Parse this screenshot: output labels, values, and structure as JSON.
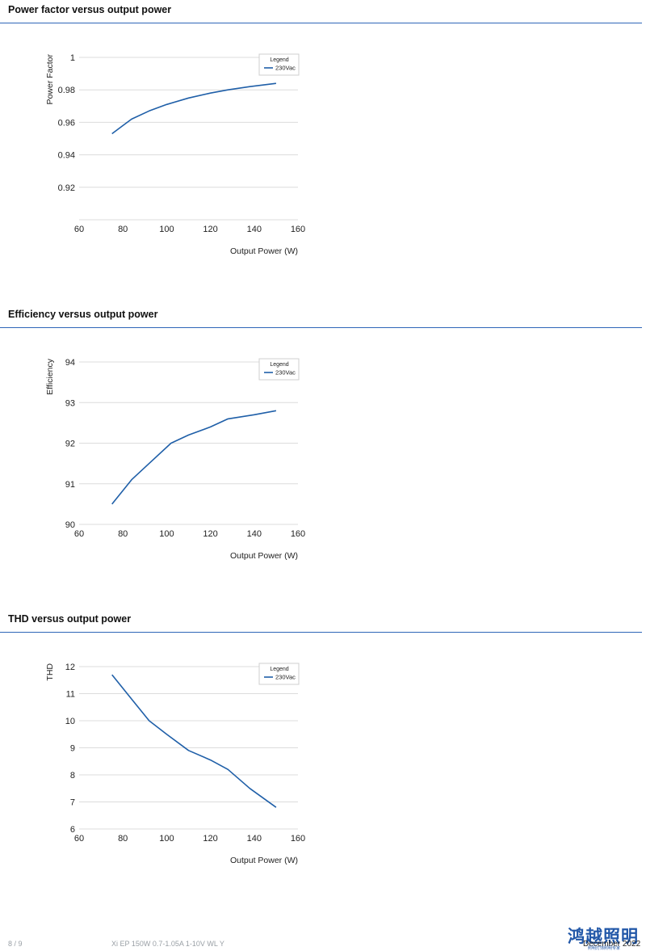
{
  "chart_data": [
    {
      "type": "line",
      "title": "Power factor versus output power",
      "xlabel": "Output Power (W)",
      "ylabel": "Power Factor",
      "xlim": [
        60,
        160
      ],
      "ylim": [
        0.9,
        1.0
      ],
      "xticks": [
        60,
        80,
        100,
        120,
        140,
        160
      ],
      "yticks": [
        0.92,
        0.94,
        0.96,
        0.98,
        1
      ],
      "ytick_labels": [
        "0.92",
        "0.94",
        "0.96",
        "0.98",
        "1"
      ],
      "grid": true,
      "legend": {
        "title": "Legend",
        "placement": "top-right"
      },
      "series": [
        {
          "name": "230Vac",
          "color": "#1f5fa8",
          "x": [
            75,
            80,
            84,
            92,
            100,
            110,
            120,
            128,
            138,
            150
          ],
          "y": [
            0.953,
            0.958,
            0.962,
            0.967,
            0.971,
            0.975,
            0.978,
            0.98,
            0.982,
            0.984
          ]
        }
      ]
    },
    {
      "type": "line",
      "title": "Efficiency versus output power",
      "xlabel": "Output Power (W)",
      "ylabel": "Efficiency",
      "xlim": [
        60,
        160
      ],
      "ylim": [
        90,
        94
      ],
      "xticks": [
        60,
        80,
        100,
        120,
        140,
        160
      ],
      "yticks": [
        90,
        91,
        92,
        93,
        94
      ],
      "ytick_labels": [
        "90",
        "91",
        "92",
        "93",
        "94"
      ],
      "grid": true,
      "legend": {
        "title": "Legend",
        "placement": "top-right"
      },
      "series": [
        {
          "name": "230Vac",
          "color": "#1f5fa8",
          "x": [
            75,
            84,
            92,
            102,
            110,
            120,
            128,
            140,
            150
          ],
          "y": [
            90.5,
            91.1,
            91.5,
            92.0,
            92.2,
            92.4,
            92.6,
            92.7,
            92.8
          ]
        }
      ]
    },
    {
      "type": "line",
      "title": "THD versus output power",
      "xlabel": "Output Power (W)",
      "ylabel": "THD",
      "xlim": [
        60,
        160
      ],
      "ylim": [
        6,
        12
      ],
      "xticks": [
        60,
        80,
        100,
        120,
        140,
        160
      ],
      "yticks": [
        6,
        7,
        8,
        9,
        10,
        11,
        12
      ],
      "ytick_labels": [
        "6",
        "7",
        "8",
        "9",
        "10",
        "11",
        "12"
      ],
      "grid": true,
      "legend": {
        "title": "Legend",
        "placement": "top-right"
      },
      "series": [
        {
          "name": "230Vac",
          "color": "#1f5fa8",
          "x": [
            75,
            84,
            92,
            100,
            110,
            120,
            128,
            138,
            150
          ],
          "y": [
            11.7,
            10.8,
            10.0,
            9.5,
            8.9,
            8.55,
            8.2,
            7.5,
            6.8
          ]
        }
      ]
    }
  ],
  "footer": {
    "page": "8 / 9",
    "product": "Xi EP 150W 0.7-1.05A 1-10V WL Y",
    "date": "December 2022",
    "watermark": "鸿越照明",
    "watermark_sub": "照明灯饰照明专家"
  },
  "colors": {
    "accent_rule": "#2e66b8",
    "series": "#1f5fa8",
    "grid": "#dcdcdc"
  }
}
